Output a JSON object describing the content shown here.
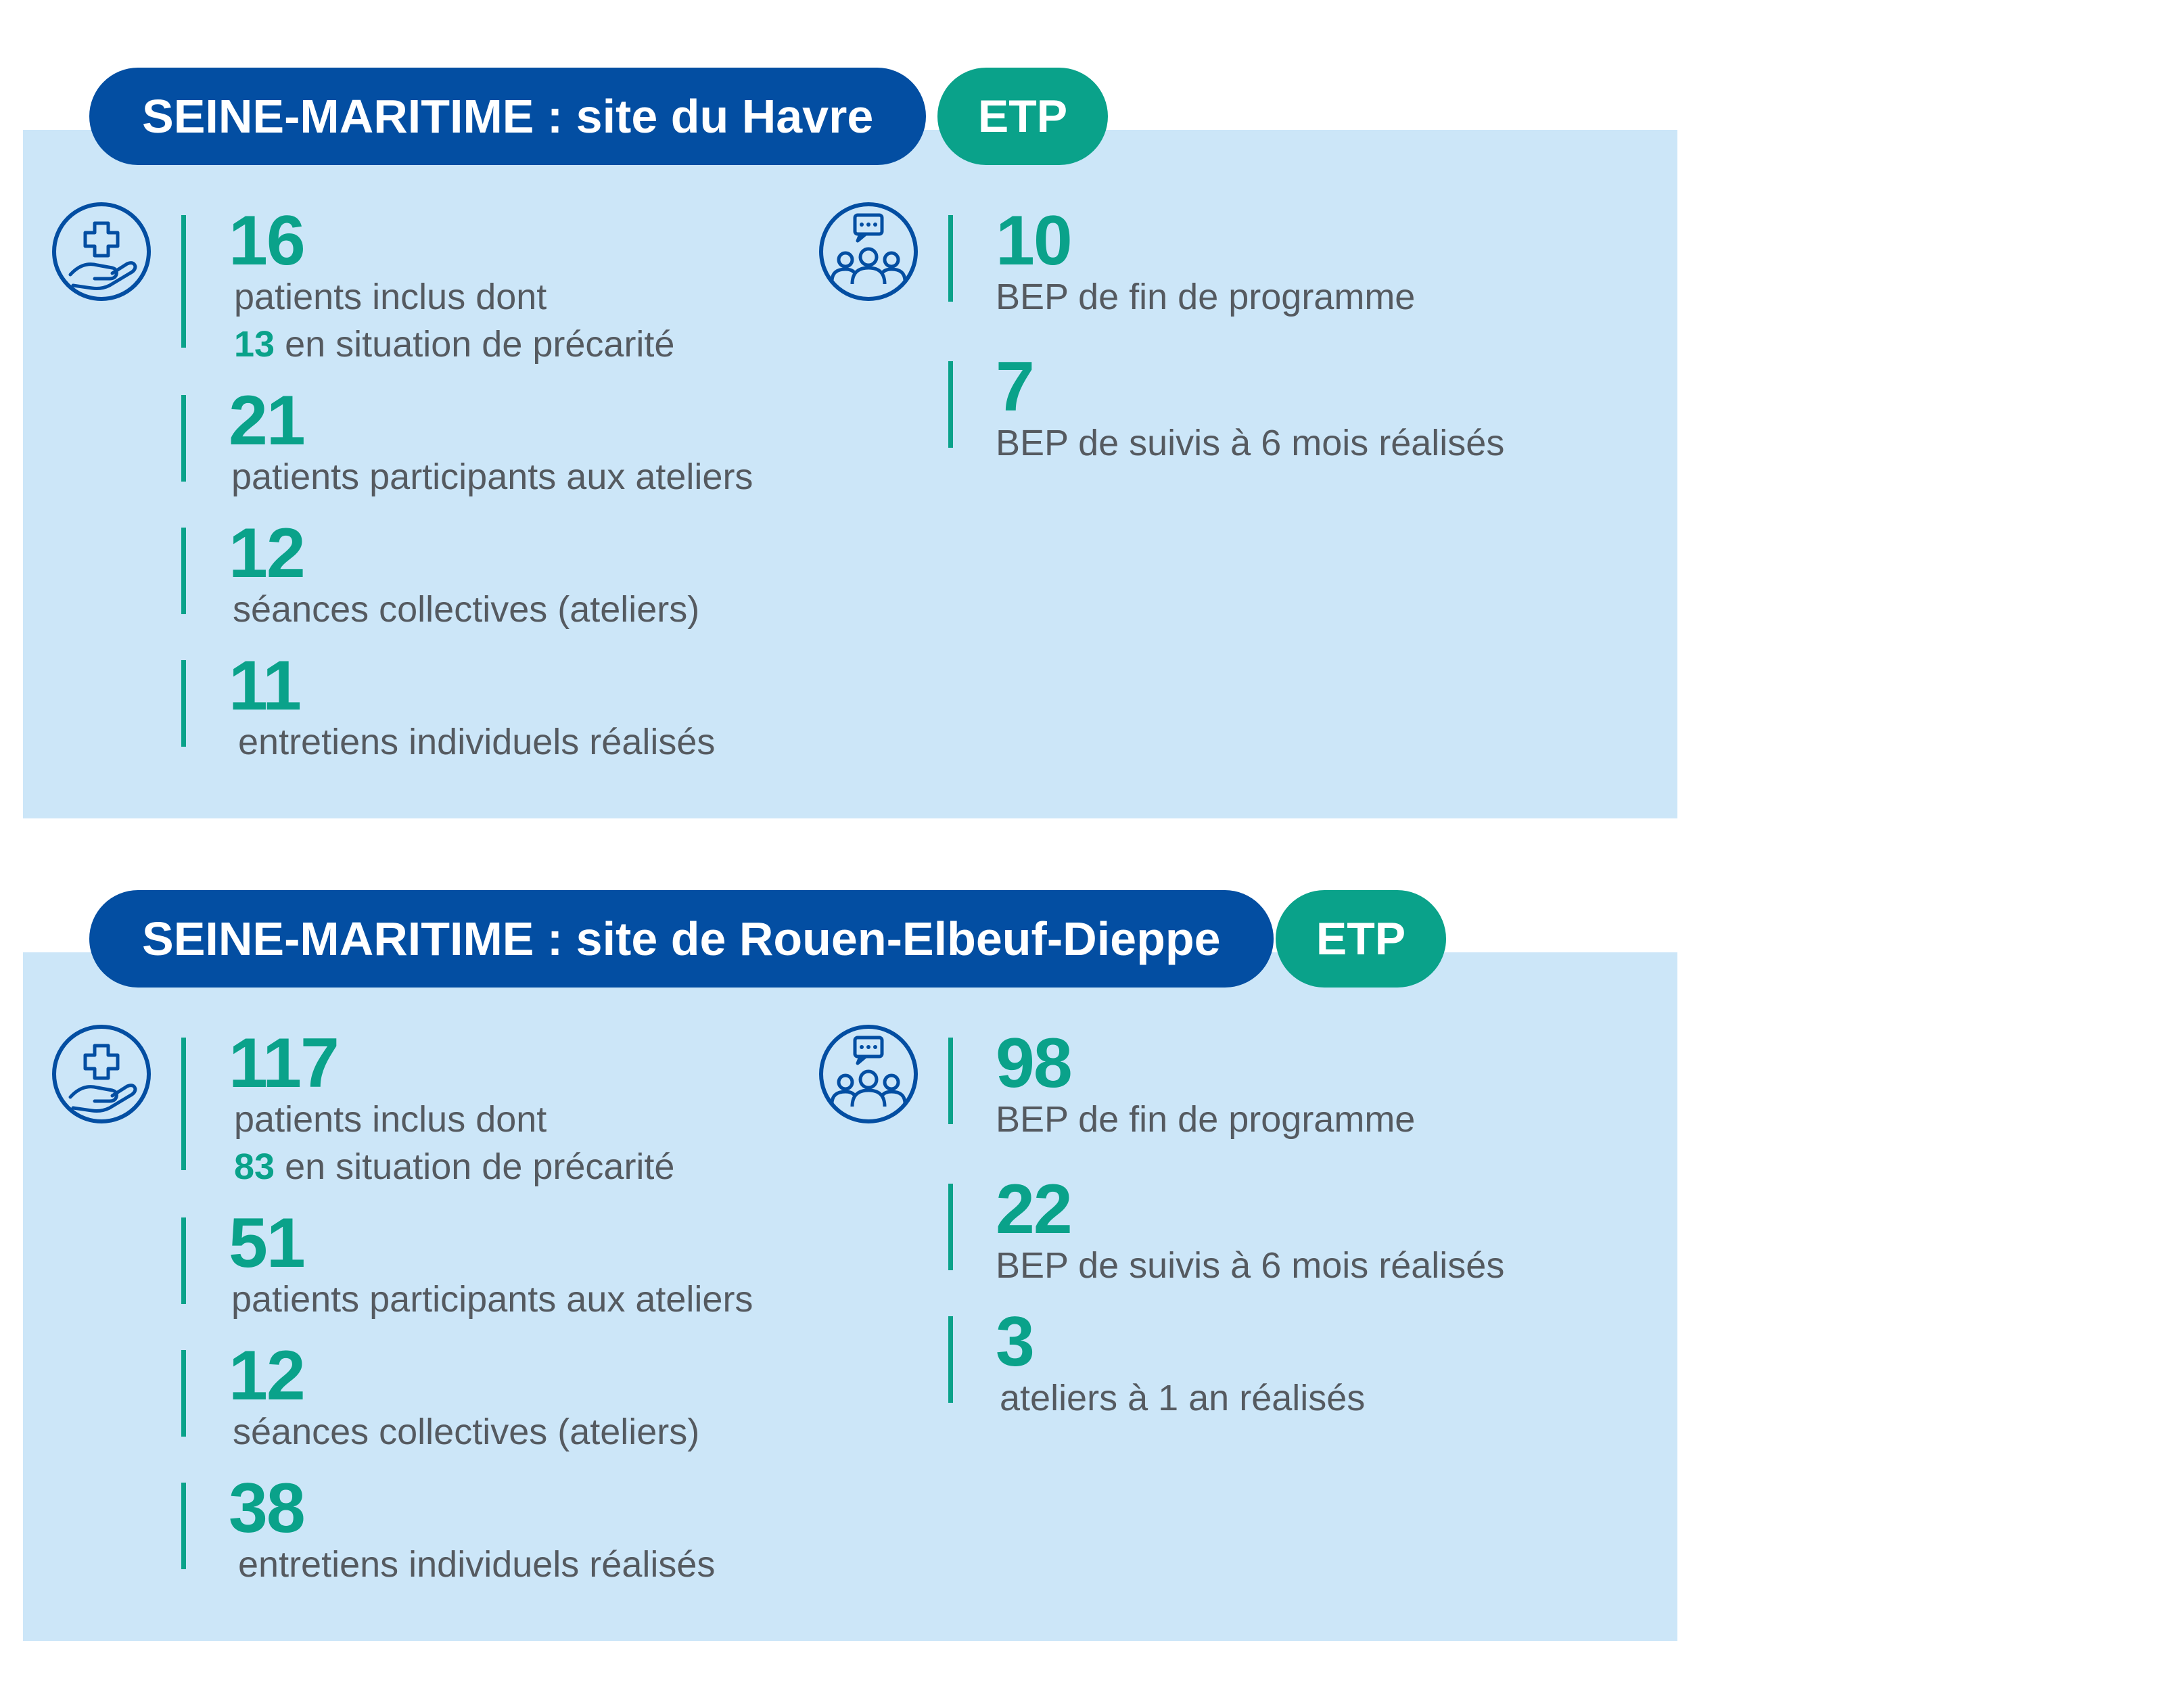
{
  "sections": [
    {
      "title": "SEINE-MARITIME : site du Havre",
      "badge": "ETP",
      "left_stats": [
        {
          "value": "16",
          "label": "patients inclus dont",
          "sub_value": "13",
          "sub_label": "en situation de précarité"
        },
        {
          "value": "21",
          "label": "patients participants aux ateliers"
        },
        {
          "value": "12",
          "label": "séances collectives (ateliers)"
        },
        {
          "value": "11",
          "label": "entretiens individuels réalisés"
        }
      ],
      "right_stats": [
        {
          "value": "10",
          "label": "BEP de fin de programme"
        },
        {
          "value": "7",
          "label": "BEP de suivis à 6 mois réalisés"
        }
      ]
    },
    {
      "title": "SEINE-MARITIME : site de Rouen-Elbeuf-Dieppe",
      "badge": "ETP",
      "left_stats": [
        {
          "value": "117",
          "label": "patients inclus dont",
          "sub_value": "83",
          "sub_label": "en situation de précarité"
        },
        {
          "value": "51",
          "label": "patients participants aux ateliers"
        },
        {
          "value": "12",
          "label": "séances collectives (ateliers)"
        },
        {
          "value": "38",
          "label": "entretiens individuels réalisés"
        }
      ],
      "right_stats": [
        {
          "value": "98",
          "label": "BEP de fin de programme"
        },
        {
          "value": "22",
          "label": "BEP de suivis à 6 mois réalisés"
        },
        {
          "value": "3",
          "label": "ateliers à 1 an réalisés"
        }
      ]
    }
  ],
  "icons": {
    "left": "hand-medical-cross-icon",
    "right": "group-chat-icon"
  },
  "colors": {
    "navy": "#034ea2",
    "teal": "#0aa28a",
    "panel": "#cce6f8",
    "text": "#555a60"
  }
}
